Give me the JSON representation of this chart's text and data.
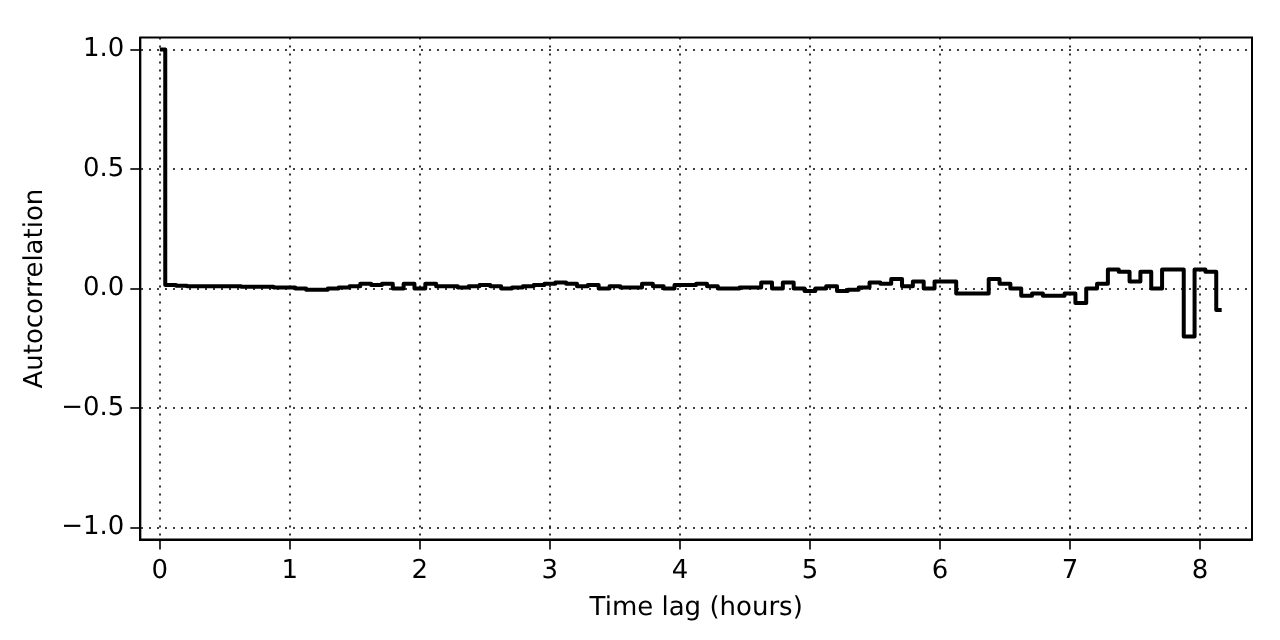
{
  "chart_data": {
    "type": "step",
    "xlabel": "Time lag (hours)",
    "ylabel": "Autocorrelation",
    "xlim": [
      -0.15,
      8.4
    ],
    "xticks": [
      0,
      1,
      2,
      3,
      4,
      5,
      6,
      7,
      8
    ],
    "ylim": [
      -1.05,
      1.05
    ],
    "yticks": [
      {
        "value": -1,
        "label": "−1.0"
      },
      {
        "value": -0.5,
        "label": "−0.5"
      },
      {
        "value": 0,
        "label": "0.0"
      },
      {
        "value": 0.5,
        "label": "0.5"
      },
      {
        "value": 1,
        "label": "1.0"
      }
    ],
    "grid": true,
    "line_style": "solid",
    "series": [
      {
        "color": "#000000",
        "x": [
          0,
          0.0833,
          0.1667,
          0.25,
          0.3333,
          0.4167,
          0.5,
          0.5833,
          0.6667,
          0.75,
          0.8333,
          0.9167,
          1,
          1.0833,
          1.1667,
          1.25,
          1.3333,
          1.4167,
          1.5,
          1.5833,
          1.6667,
          1.75,
          1.8333,
          1.9167,
          2,
          2.0833,
          2.1667,
          2.25,
          2.3333,
          2.4167,
          2.5,
          2.5833,
          2.6667,
          2.75,
          2.8333,
          2.9167,
          3,
          3.0833,
          3.1667,
          3.25,
          3.3333,
          3.4167,
          3.5,
          3.5833,
          3.6667,
          3.75,
          3.8333,
          3.9167,
          4,
          4.0833,
          4.1667,
          4.25,
          4.3333,
          4.4167,
          4.5,
          4.5833,
          4.6667,
          4.75,
          4.8333,
          4.9167,
          5,
          5.0833,
          5.1667,
          5.25,
          5.3333,
          5.4167,
          5.5,
          5.5833,
          5.6667,
          5.75,
          5.8333,
          5.9167,
          6,
          6.0833,
          6.1667,
          6.25,
          6.3333,
          6.4167,
          6.5,
          6.5833,
          6.6667,
          6.75,
          6.8333,
          6.9167,
          7,
          7.0833,
          7.1667,
          7.25,
          7.3333,
          7.4167,
          7.5,
          7.5833,
          7.6667,
          7.75,
          7.8333,
          7.9167,
          8,
          8.0833,
          8.1667
        ],
        "values": [
          1,
          0.015,
          0.012,
          0.01,
          0.01,
          0.01,
          0.01,
          0.01,
          0.008,
          0.008,
          0.008,
          0.005,
          0.005,
          0,
          -0.005,
          -0.005,
          0,
          0.005,
          0.01,
          0.02,
          0.015,
          0.02,
          0,
          0.02,
          0,
          0.02,
          0.01,
          0.01,
          0.005,
          0.01,
          0.015,
          0.01,
          0,
          0.005,
          0.01,
          0.015,
          0.02,
          0.025,
          0.02,
          0.01,
          0.015,
          0,
          0.01,
          0.005,
          0.005,
          0.02,
          0.01,
          0,
          0.015,
          0.015,
          0.02,
          0.01,
          0,
          0,
          0.005,
          0.005,
          0.025,
          0,
          0.025,
          0,
          -0.01,
          0,
          0.01,
          -0.01,
          -0.005,
          0.005,
          0.025,
          0.02,
          0.04,
          0.01,
          0.03,
          0,
          0.03,
          0.03,
          -0.02,
          -0.02,
          -0.02,
          0.04,
          0.02,
          0,
          -0.03,
          -0.02,
          -0.03,
          -0.03,
          -0.02,
          -0.06,
          0,
          0.02,
          0.08,
          0.07,
          0.03,
          0.07,
          0,
          0.08,
          0.08,
          -0.2,
          0.08,
          0.07,
          -0.09
        ]
      }
    ]
  }
}
